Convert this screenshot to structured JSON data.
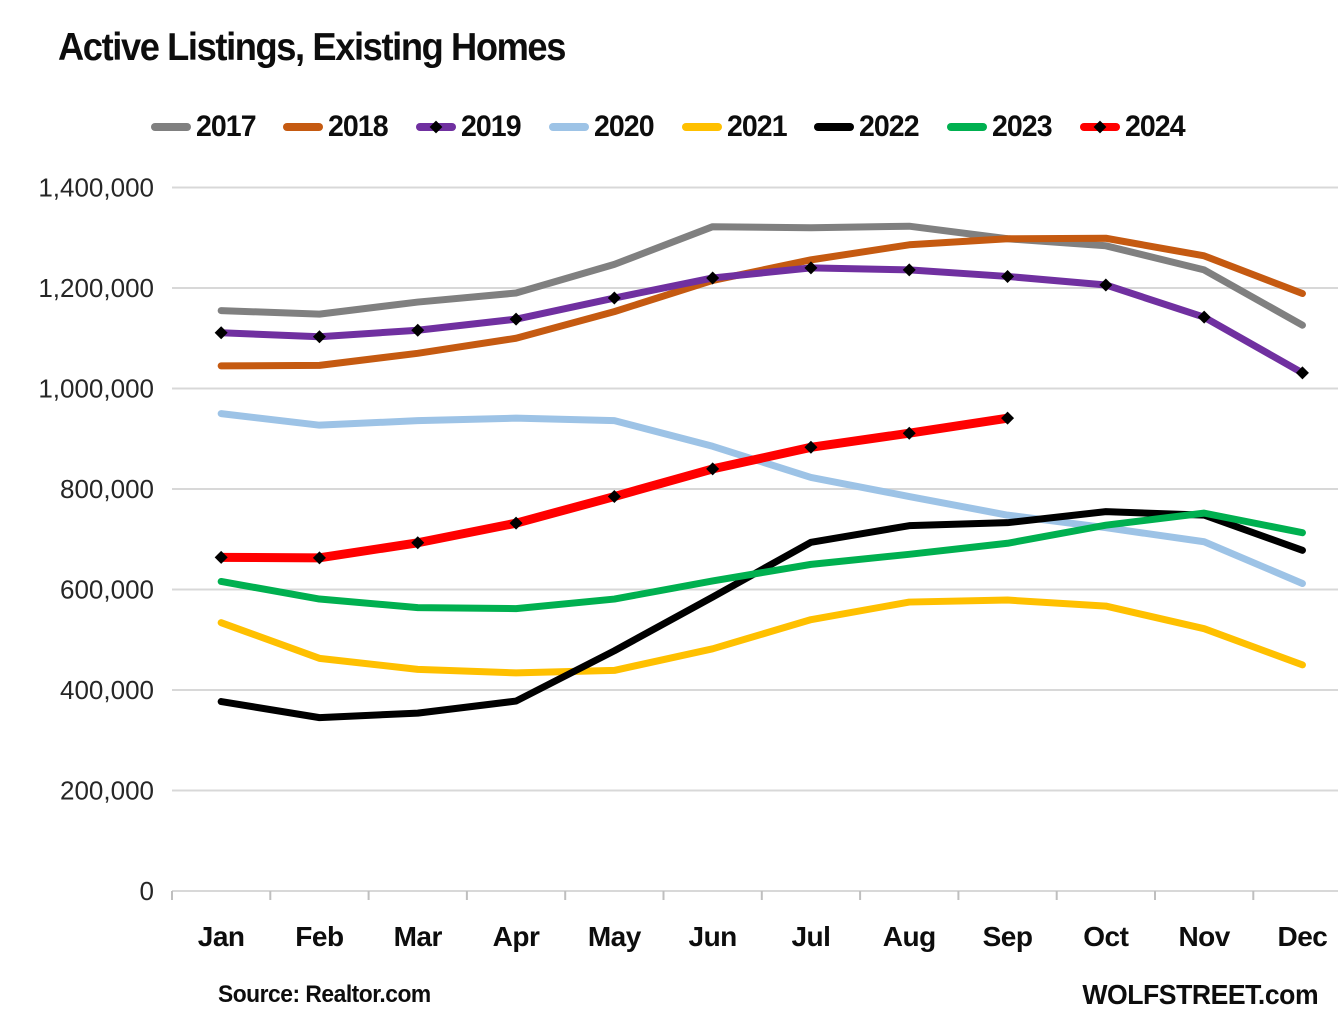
{
  "title": "Active Listings, Existing Homes",
  "footer": {
    "source": "Source: Realtor.com",
    "branding": "WOLFSTREET.com"
  },
  "style_colors": {
    "gridline": "#D8D8D8",
    "axis_tick": "#BFBFBF",
    "label_text": "#262626",
    "title_text": "#0D0D0D"
  },
  "chart_data": {
    "type": "line",
    "title": "Active Listings, Existing Homes",
    "xlabel": "",
    "ylabel": "",
    "categories": [
      "Jan",
      "Feb",
      "Mar",
      "Apr",
      "May",
      "Jun",
      "Jul",
      "Aug",
      "Sep",
      "Oct",
      "Nov",
      "Dec"
    ],
    "ylim": [
      0,
      1400000
    ],
    "y_tick_step": 200000,
    "y_tick_labels": [
      "0",
      "200,000",
      "400,000",
      "600,000",
      "800,000",
      "1,000,000",
      "1,200,000",
      "1,400,000"
    ],
    "grid": "horizontal",
    "legend_position": "top",
    "series": [
      {
        "name": "2017",
        "color": "#808080",
        "markers": false,
        "stroke_width": 7,
        "values": [
          1155000,
          1148000,
          1172000,
          1190000,
          1247000,
          1322000,
          1320000,
          1323000,
          1298000,
          1284000,
          1236000,
          1126000
        ]
      },
      {
        "name": "2018",
        "color": "#C55A11",
        "markers": false,
        "stroke_width": 7,
        "values": [
          1045000,
          1046000,
          1070000,
          1100000,
          1153000,
          1215000,
          1256000,
          1286000,
          1298000,
          1299000,
          1264000,
          1189000
        ]
      },
      {
        "name": "2019",
        "color": "#7030A0",
        "markers": true,
        "stroke_width": 7,
        "values": [
          1111000,
          1103000,
          1116000,
          1138000,
          1180000,
          1220000,
          1240000,
          1236000,
          1223000,
          1206000,
          1142000,
          1031000
        ]
      },
      {
        "name": "2020",
        "color": "#9DC3E6",
        "markers": false,
        "stroke_width": 7,
        "values": [
          950000,
          927000,
          936000,
          941000,
          936000,
          885000,
          823000,
          785000,
          748000,
          723000,
          695000,
          612000
        ]
      },
      {
        "name": "2021",
        "color": "#FFC000",
        "markers": false,
        "stroke_width": 7,
        "values": [
          534000,
          463000,
          441000,
          434000,
          439000,
          482000,
          540000,
          575000,
          579000,
          567000,
          522000,
          450000
        ]
      },
      {
        "name": "2022",
        "color": "#000000",
        "markers": false,
        "stroke_width": 7,
        "values": [
          377000,
          345000,
          354000,
          378000,
          478000,
          585000,
          694000,
          727000,
          733000,
          755000,
          748000,
          678000
        ]
      },
      {
        "name": "2023",
        "color": "#00B050",
        "markers": false,
        "stroke_width": 7,
        "values": [
          616000,
          581000,
          564000,
          562000,
          581000,
          617000,
          650000,
          670000,
          692000,
          728000,
          752000,
          713000
        ]
      },
      {
        "name": "2024",
        "color": "#FF0000",
        "markers": true,
        "stroke_width": 9,
        "values": [
          664000,
          663000,
          693000,
          732000,
          785000,
          840000,
          883000,
          911000,
          941000
        ]
      }
    ]
  }
}
